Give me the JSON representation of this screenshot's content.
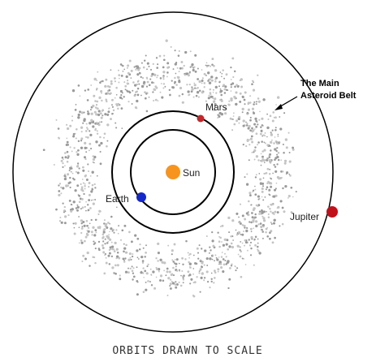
{
  "belt_label": [
    "The Main",
    "Asteroid Belt"
  ],
  "bodies": {
    "sun": "Sun",
    "earth": "Earth",
    "mars": "Mars",
    "jupiter": "Jupiter"
  },
  "caption": "ORBITS DRAWN TO SCALE"
}
